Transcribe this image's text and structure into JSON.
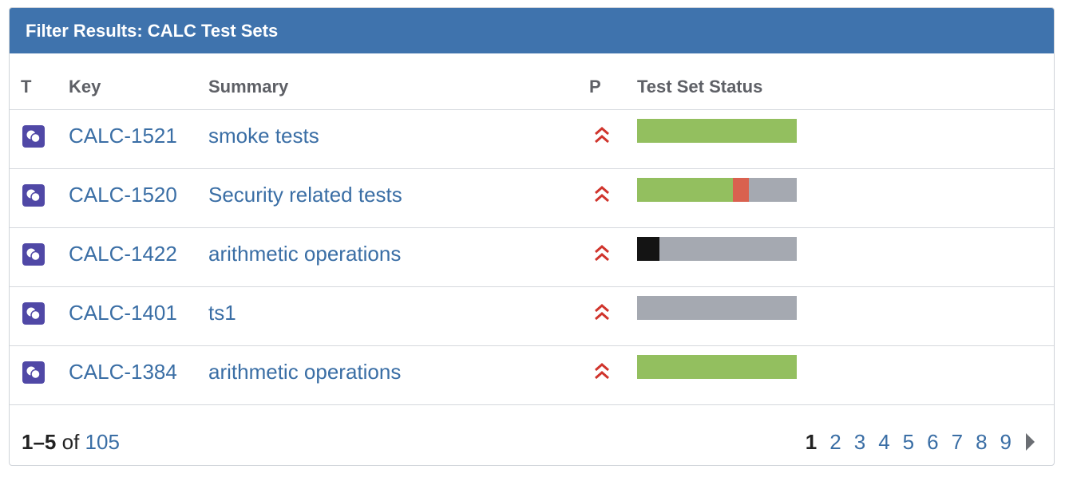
{
  "header": {
    "title": "Filter Results: CALC Test Sets"
  },
  "columns": {
    "type": "T",
    "key": "Key",
    "summary": "Summary",
    "priority": "P",
    "status": "Test Set Status"
  },
  "colors": {
    "pass": "#93bf5f",
    "fail": "#d9614f",
    "executing": "#141414",
    "todo": "#a5a9b1",
    "priority": "#d0342c",
    "icon_bg": "#5048a6"
  },
  "rows": [
    {
      "type_icon": "test-set-icon",
      "key": "CALC-1521",
      "summary": "smoke tests",
      "priority_icon": "highest-priority-icon",
      "status_segments": [
        {
          "status": "pass",
          "fraction": 1.0
        }
      ]
    },
    {
      "type_icon": "test-set-icon",
      "key": "CALC-1520",
      "summary": "Security related tests",
      "priority_icon": "highest-priority-icon",
      "status_segments": [
        {
          "status": "pass",
          "fraction": 0.6
        },
        {
          "status": "fail",
          "fraction": 0.1
        },
        {
          "status": "todo",
          "fraction": 0.3
        }
      ]
    },
    {
      "type_icon": "test-set-icon",
      "key": "CALC-1422",
      "summary": "arithmetic operations",
      "priority_icon": "highest-priority-icon",
      "status_segments": [
        {
          "status": "executing",
          "fraction": 0.14
        },
        {
          "status": "todo",
          "fraction": 0.86
        }
      ]
    },
    {
      "type_icon": "test-set-icon",
      "key": "CALC-1401",
      "summary": "ts1",
      "priority_icon": "highest-priority-icon",
      "status_segments": [
        {
          "status": "todo",
          "fraction": 1.0
        }
      ]
    },
    {
      "type_icon": "test-set-icon",
      "key": "CALC-1384",
      "summary": "arithmetic operations",
      "priority_icon": "highest-priority-icon",
      "status_segments": [
        {
          "status": "pass",
          "fraction": 1.0
        }
      ]
    }
  ],
  "footer": {
    "range": "1–5",
    "of": "of",
    "total": "105",
    "pages": [
      "1",
      "2",
      "3",
      "4",
      "5",
      "6",
      "7",
      "8",
      "9"
    ],
    "current_page": "1",
    "next_icon": "next-page-icon"
  }
}
